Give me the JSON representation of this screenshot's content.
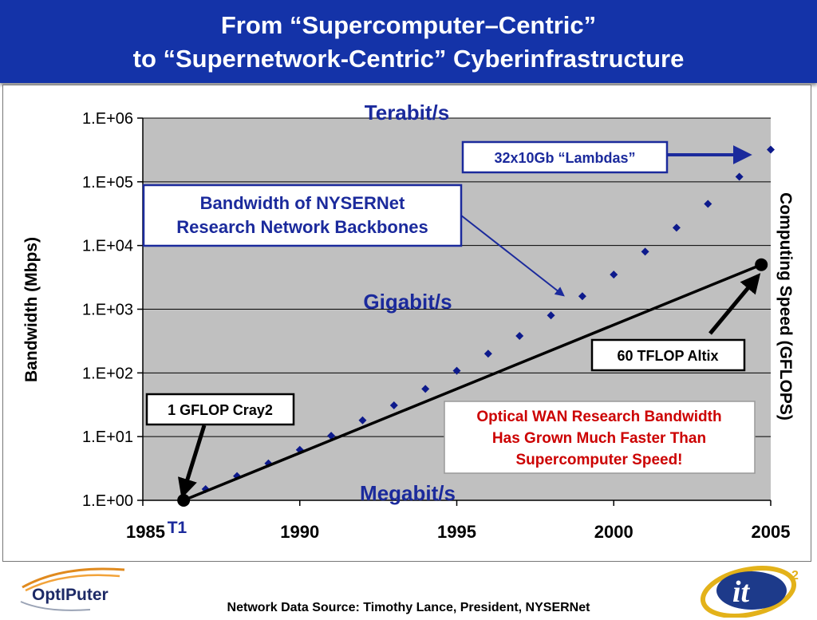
{
  "title": {
    "line1": "From “Supercomputer–Centric”",
    "line2": "to “Supernetwork-Centric” Cyberinfrastructure"
  },
  "colors": {
    "title_bar": "#1433a8",
    "plot_bg": "#c0c0c0",
    "diamond": "#0d1a8c",
    "label_blue": "#1b2a9c",
    "red_text": "#cc0000"
  },
  "chart_data": {
    "type": "scatter",
    "ylabel": "Bandwidth (Mbps)",
    "y2label": "Computing Speed (GFLOPS)",
    "ylog": true,
    "yticks": [
      "1.E+00",
      "1.E+01",
      "1.E+02",
      "1.E+03",
      "1.E+04",
      "1.E+05",
      "1.E+06"
    ],
    "xticks": [
      "1985",
      "1990",
      "1995",
      "2000",
      "2005"
    ],
    "xlim": [
      1985,
      2005
    ],
    "ylim_exp": [
      0,
      6
    ],
    "grid": true,
    "series": [
      {
        "points": [
          [
            1987,
            1.5
          ],
          [
            1988,
            2.4
          ],
          [
            1989,
            3.8
          ],
          [
            1990,
            6.2
          ],
          [
            1991,
            10.3
          ],
          [
            1992,
            18
          ],
          [
            1993,
            31
          ],
          [
            1994,
            56
          ],
          [
            1995,
            108
          ],
          [
            1996,
            200
          ],
          [
            1997,
            380
          ],
          [
            1998,
            800
          ],
          [
            1999,
            1600
          ],
          [
            2000,
            3500
          ],
          [
            2001,
            8000
          ],
          [
            2002,
            19000
          ],
          [
            2003,
            45000
          ],
          [
            2004,
            120000
          ],
          [
            2005,
            320000
          ]
        ]
      },
      {
        "points": [
          [
            1986.3,
            1
          ],
          [
            2004.7,
            5000
          ]
        ]
      }
    ],
    "band_labels": [
      "Terabit/s",
      "Gigabit/s",
      "Megabit/s"
    ],
    "t1_label": "T1",
    "annotations": {
      "lambdas": "32x10Gb “Lambdas”",
      "nysernet_line1": "Bandwidth of NYSERNet",
      "nysernet_line2": "Research Network Backbones",
      "altix": "60 TFLOP Altix",
      "cray": "1 GFLOP Cray2",
      "optical_line1": "Optical WAN Research Bandwidth",
      "optical_line2": "Has Grown Much Faster Than",
      "optical_line3": "Supercomputer Speed!"
    }
  },
  "footer": {
    "source": "Network Data Source: Timothy Lance, President, NYSERNet",
    "logo_left_text": "OptIPuter",
    "logo_right_text": "it",
    "logo_right_sup": "2"
  }
}
